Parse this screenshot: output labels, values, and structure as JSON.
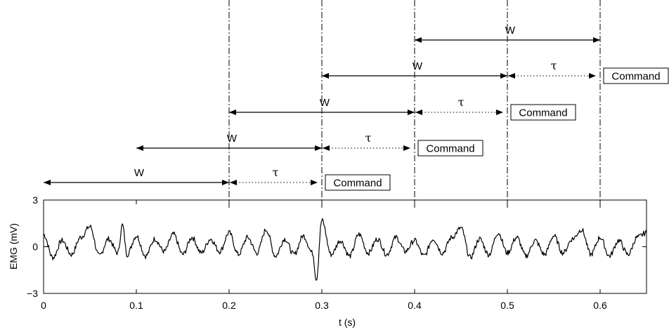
{
  "axes": {
    "xlabel": "t (s)",
    "ylabel": "EMG (mV)",
    "x_ticks": [
      "0",
      "0.1",
      "0.2",
      "0.3",
      "0.4",
      "0.5",
      "0.6"
    ],
    "y_ticks": [
      "3",
      "0",
      "−3"
    ]
  },
  "timeline": {
    "window_label": "W",
    "delay_label": "τ",
    "command_label": "Command",
    "rows": [
      {
        "window": [
          0.0,
          0.2
        ],
        "delay": [
          0.2,
          0.3
        ]
      },
      {
        "window": [
          0.1,
          0.3
        ],
        "delay": [
          0.3,
          0.4
        ]
      },
      {
        "window": [
          0.2,
          0.4
        ],
        "delay": [
          0.4,
          0.5
        ]
      },
      {
        "window": [
          0.3,
          0.5
        ],
        "delay": [
          0.5,
          0.6
        ]
      },
      {
        "window": [
          0.4,
          0.6
        ],
        "delay": null
      }
    ]
  },
  "chart_data": {
    "type": "line",
    "xlabel": "t (s)",
    "ylabel": "EMG (mV)",
    "xlim": [
      0,
      0.65
    ],
    "ylim": [
      -3,
      3
    ],
    "x_ticks": [
      0,
      0.1,
      0.2,
      0.3,
      0.4,
      0.5,
      0.6
    ],
    "y_ticks": [
      -3,
      0,
      3
    ],
    "dashed_markers": [
      0.2,
      0.3,
      0.4,
      0.5,
      0.6
    ],
    "series": [
      {
        "x": [
          0,
          0.01,
          0.02,
          0.03,
          0.04,
          0.05,
          0.06,
          0.07,
          0.08,
          0.085,
          0.09,
          0.1,
          0.11,
          0.12,
          0.13,
          0.14,
          0.15,
          0.16,
          0.17,
          0.18,
          0.19,
          0.2,
          0.21,
          0.22,
          0.23,
          0.24,
          0.25,
          0.26,
          0.27,
          0.28,
          0.29,
          0.294,
          0.3,
          0.31,
          0.32,
          0.33,
          0.34,
          0.35,
          0.36,
          0.37,
          0.38,
          0.39,
          0.4,
          0.41,
          0.42,
          0.43,
          0.44,
          0.45,
          0.46,
          0.47,
          0.48,
          0.49,
          0.5,
          0.51,
          0.52,
          0.53,
          0.54,
          0.55,
          0.56,
          0.57,
          0.58,
          0.59,
          0.6,
          0.61,
          0.62,
          0.63,
          0.64,
          0.65
        ],
        "values": [
          0.8,
          -0.7,
          0.4,
          -0.5,
          0.6,
          1.3,
          -0.6,
          0.5,
          -0.4,
          1.4,
          -0.5,
          0.7,
          -0.6,
          0.5,
          -0.3,
          0.8,
          -0.5,
          0.6,
          -0.4,
          0.5,
          -0.3,
          0.9,
          -0.5,
          0.6,
          -0.4,
          1.1,
          -0.6,
          0.5,
          -0.5,
          0.7,
          -0.4,
          -2.1,
          1.7,
          -0.5,
          0.4,
          -0.6,
          0.8,
          -0.4,
          0.5,
          -0.5,
          0.6,
          -0.3,
          0.4,
          -0.6,
          0.5,
          -0.4,
          0.6,
          1.2,
          -0.7,
          0.5,
          -0.5,
          0.9,
          -0.4,
          0.6,
          -0.6,
          0.4,
          -0.5,
          0.7,
          -0.4,
          0.5,
          1.1,
          -0.5,
          0.6,
          -0.6,
          0.4,
          -0.5,
          0.6,
          0.9
        ]
      }
    ]
  }
}
